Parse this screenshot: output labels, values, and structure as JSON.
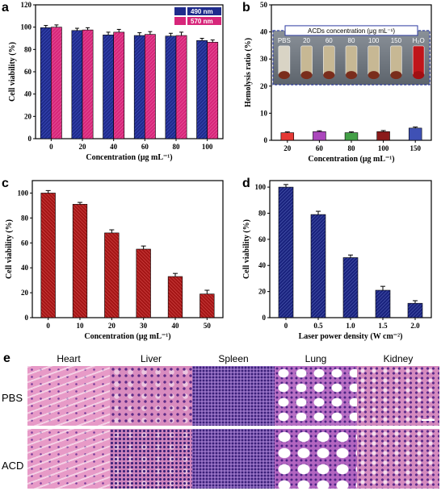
{
  "panels": {
    "a": "a",
    "b": "b",
    "c": "c",
    "d": "d",
    "e": "e"
  },
  "chart_data": [
    {
      "id": "a",
      "type": "bar",
      "categories": [
        "0",
        "20",
        "40",
        "60",
        "80",
        "100"
      ],
      "series": [
        {
          "name": "490 nm",
          "color": "#1f2b8c",
          "values": [
            99.5,
            97.0,
            93.0,
            92.5,
            92.0,
            88.0
          ],
          "errors": [
            2.0,
            2.0,
            2.5,
            2.5,
            2.5,
            2.0
          ]
        },
        {
          "name": "570 nm",
          "color": "#d7267a",
          "values": [
            100.0,
            97.5,
            95.5,
            93.5,
            92.5,
            86.5
          ],
          "errors": [
            2.0,
            2.0,
            2.5,
            2.5,
            3.0,
            2.0
          ]
        }
      ],
      "xlabel": "Concentration (μg mL⁻¹)",
      "ylabel": "Cell viability (%)",
      "ylim": [
        0,
        120
      ],
      "yticks": [
        "0",
        "20",
        "40",
        "60",
        "80",
        "100",
        "120"
      ],
      "legend": "top-right"
    },
    {
      "id": "b",
      "type": "bar",
      "categories": [
        "20",
        "60",
        "80",
        "100",
        "150"
      ],
      "values": [
        2.8,
        3.2,
        2.8,
        3.2,
        4.5
      ],
      "errors": [
        0.3,
        0.3,
        0.3,
        0.4,
        0.4
      ],
      "colors": [
        "#e53935",
        "#ab47bc",
        "#43a047",
        "#8b1a1a",
        "#3f51b5"
      ],
      "xlabel": "Concentration (μg mL⁻¹)",
      "ylabel": "Hemolysis ratio (%)",
      "ylim": [
        0,
        50
      ],
      "yticks": [
        "0",
        "10",
        "20",
        "30",
        "40",
        "50"
      ],
      "inset": {
        "title": "ACDs concentration (μg mL⁻¹)",
        "tube_labels": [
          "PBS",
          "20",
          "60",
          "80",
          "100",
          "150",
          "H₂O"
        ]
      }
    },
    {
      "id": "c",
      "type": "bar",
      "categories": [
        "0",
        "10",
        "20",
        "30",
        "40",
        "50"
      ],
      "values": [
        100,
        91,
        68,
        55,
        33,
        19
      ],
      "errors": [
        2.0,
        1.5,
        2.5,
        2.5,
        2.5,
        3.0
      ],
      "color": "#b22222",
      "xlabel": "Concentration (μg mL⁻¹)",
      "ylabel": "Cell viability (%)",
      "ylim": [
        0,
        110
      ],
      "yticks": [
        "0",
        "20",
        "40",
        "60",
        "80",
        "100"
      ]
    },
    {
      "id": "d",
      "type": "bar",
      "categories": [
        "0",
        "0.5",
        "1.0",
        "1.5",
        "2.0"
      ],
      "values": [
        100,
        79,
        46,
        21,
        11
      ],
      "errors": [
        2.0,
        2.5,
        2.0,
        3.0,
        2.0
      ],
      "color": "#1f2b8c",
      "xlabel": "Laser power density (W cm⁻²)",
      "ylabel": "Cell viability (%)",
      "ylim": [
        0,
        105
      ],
      "yticks": [
        "0",
        "20",
        "40",
        "60",
        "80",
        "100"
      ]
    }
  ],
  "histology": {
    "columns": [
      "Heart",
      "Liver",
      "Spleen",
      "Lung",
      "Kidney"
    ],
    "rows": [
      "PBS",
      "ACD"
    ]
  }
}
